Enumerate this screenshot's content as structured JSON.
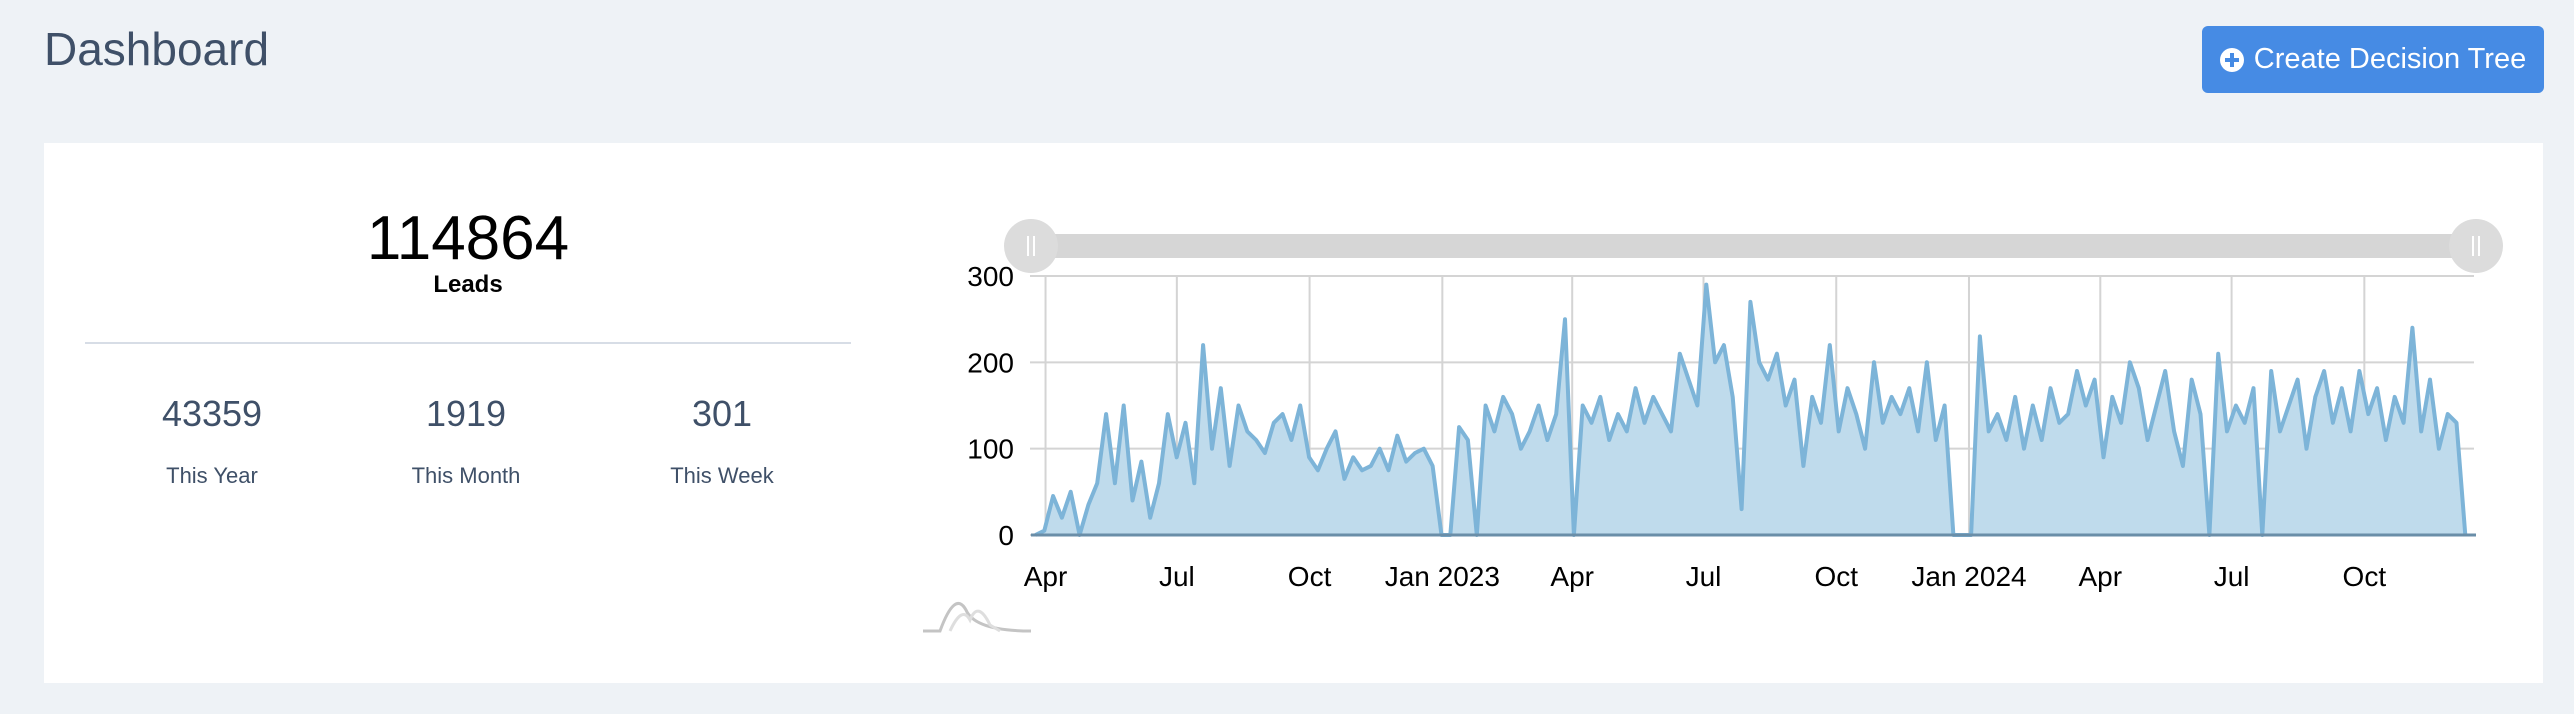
{
  "header": {
    "title": "Dashboard",
    "create_button": "Create Decision Tree"
  },
  "summary": {
    "total": "114864",
    "total_label": "Leads",
    "stats": [
      {
        "value": "43359",
        "label": "This Year"
      },
      {
        "value": "1919",
        "label": "This Month"
      },
      {
        "value": "301",
        "label": "This Week"
      }
    ]
  },
  "colors": {
    "accent": "#468be4",
    "line": "#7db4d8",
    "fill": "#bfdbec",
    "background": "#eef2f6"
  },
  "chart_data": {
    "type": "area",
    "title": "",
    "xlabel": "",
    "ylabel": "",
    "ylim": [
      0,
      300
    ],
    "yticks": [
      0,
      100,
      200,
      300
    ],
    "x_start": "2022-03-25",
    "x_end": "2024-12-10",
    "x_domain": [
      "2022-03-24",
      "2024-12-16"
    ],
    "xticks": [
      {
        "date": "2022-04-01",
        "label": "Apr"
      },
      {
        "date": "2022-07-01",
        "label": "Jul"
      },
      {
        "date": "2022-10-01",
        "label": "Oct"
      },
      {
        "date": "2023-01-01",
        "label": "Jan 2023"
      },
      {
        "date": "2023-04-01",
        "label": "Apr"
      },
      {
        "date": "2023-07-01",
        "label": "Jul"
      },
      {
        "date": "2023-10-01",
        "label": "Oct"
      },
      {
        "date": "2024-01-01",
        "label": "Jan 2024"
      },
      {
        "date": "2024-04-01",
        "label": "Apr"
      },
      {
        "date": "2024-07-01",
        "label": "Jul"
      },
      {
        "date": "2024-10-01",
        "label": "Oct"
      }
    ],
    "grid": true,
    "range_slider": true,
    "values": [
      0,
      5,
      45,
      20,
      50,
      0,
      35,
      60,
      140,
      60,
      150,
      40,
      85,
      20,
      60,
      140,
      90,
      130,
      60,
      220,
      100,
      170,
      80,
      150,
      120,
      110,
      95,
      130,
      140,
      110,
      150,
      90,
      75,
      100,
      120,
      65,
      90,
      75,
      80,
      100,
      75,
      115,
      85,
      95,
      100,
      80,
      0,
      0,
      125,
      110,
      0,
      150,
      120,
      160,
      140,
      100,
      120,
      150,
      110,
      140,
      250,
      0,
      150,
      130,
      160,
      110,
      140,
      120,
      170,
      130,
      160,
      140,
      120,
      210,
      180,
      150,
      290,
      200,
      220,
      160,
      30,
      270,
      200,
      180,
      210,
      150,
      180,
      80,
      160,
      130,
      220,
      120,
      170,
      140,
      100,
      200,
      130,
      160,
      140,
      170,
      120,
      200,
      110,
      150,
      0,
      0,
      0,
      230,
      120,
      140,
      110,
      160,
      100,
      150,
      110,
      170,
      130,
      140,
      190,
      150,
      180,
      90,
      160,
      130,
      200,
      170,
      110,
      150,
      190,
      120,
      80,
      180,
      140,
      0,
      210,
      120,
      150,
      130,
      170,
      0,
      190,
      120,
      150,
      180,
      100,
      160,
      190,
      130,
      170,
      120,
      190,
      140,
      170,
      110,
      160,
      130,
      240,
      120,
      180,
      100,
      140,
      130,
      0
    ]
  }
}
